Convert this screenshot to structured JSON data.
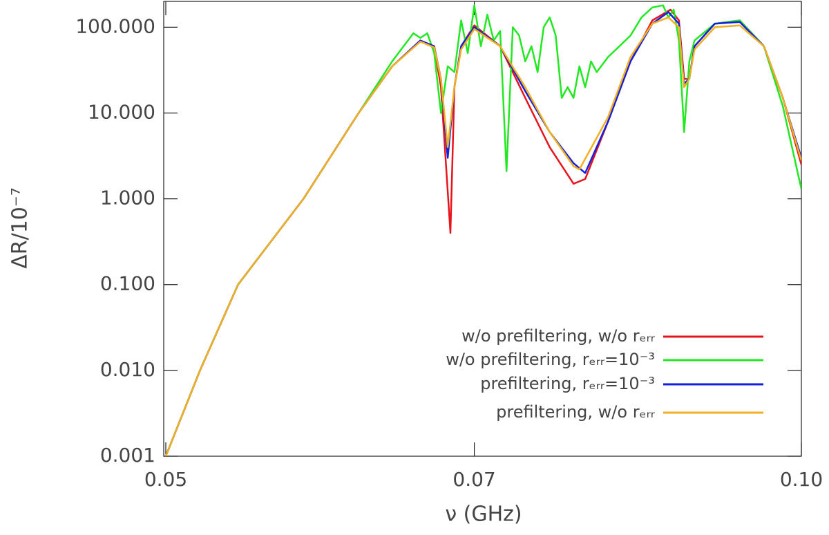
{
  "chart_data": {
    "type": "line",
    "x_label": "ν (GHz)",
    "y_label": "ΔR/10⁻⁷",
    "xlim": [
      0.05,
      0.1
    ],
    "ylim": [
      0.001,
      200
    ],
    "xticks": [
      0.05,
      0.07,
      {
        "value": 0.1,
        "label": "0.10"
      }
    ],
    "yticks": [
      {
        "value": 0.001,
        "label": "0.001"
      },
      {
        "value": 0.01,
        "label": "0.010"
      },
      {
        "value": 0.1,
        "label": "0.100"
      },
      {
        "value": 1,
        "label": "1.000"
      },
      {
        "value": 10,
        "label": "10.000"
      },
      {
        "value": 100,
        "label": "100.000"
      }
    ],
    "log_x": true,
    "log_y": true,
    "legend": "lower right",
    "series": [
      {
        "name": "w/o prefiltering, w/o rₑᵣᵣ",
        "color": "#e8141c",
        "x": [
          0.05,
          0.0519,
          0.0541,
          0.0581,
          0.0617,
          0.064,
          0.066,
          0.067,
          0.0675,
          0.0682,
          0.0685,
          0.069,
          0.07,
          0.072,
          0.074,
          0.076,
          0.078,
          0.079,
          0.081,
          0.083,
          0.085,
          0.0867,
          0.0875,
          0.088,
          0.0885,
          0.089,
          0.091,
          0.0935,
          0.096,
          0.098,
          0.1
        ],
        "values": [
          0.001,
          0.01,
          0.1,
          1,
          10,
          35,
          70,
          60,
          20,
          0.4,
          20,
          60,
          105,
          60,
          15,
          4,
          1.5,
          1.7,
          8,
          40,
          120,
          160,
          120,
          25,
          25,
          60,
          110,
          120,
          60,
          15,
          2.5
        ]
      },
      {
        "name": "w/o prefiltering, rₑᵣᵣ=10⁻³",
        "color": "#22e822",
        "x": [
          0.05,
          0.0519,
          0.0541,
          0.0581,
          0.0617,
          0.064,
          0.0655,
          0.066,
          0.0665,
          0.067,
          0.0675,
          0.068,
          0.0685,
          0.069,
          0.0695,
          0.07,
          0.0705,
          0.071,
          0.0715,
          0.072,
          0.0725,
          0.073,
          0.0735,
          0.074,
          0.0745,
          0.075,
          0.0755,
          0.076,
          0.0765,
          0.077,
          0.0775,
          0.078,
          0.0785,
          0.079,
          0.0795,
          0.08,
          0.081,
          0.082,
          0.083,
          0.084,
          0.085,
          0.086,
          0.0865,
          0.087,
          0.0875,
          0.088,
          0.0885,
          0.089,
          0.091,
          0.0935,
          0.096,
          0.098,
          0.1
        ],
        "values": [
          0.001,
          0.01,
          0.1,
          1,
          10,
          40,
          85,
          75,
          85,
          50,
          10,
          35,
          30,
          120,
          50,
          180,
          60,
          140,
          70,
          90,
          2.1,
          100,
          80,
          40,
          60,
          30,
          100,
          130,
          80,
          15,
          20,
          15,
          35,
          20,
          40,
          30,
          45,
          60,
          80,
          130,
          170,
          180,
          130,
          160,
          70,
          6,
          40,
          70,
          110,
          120,
          60,
          12,
          1.3
        ]
      },
      {
        "name": "prefiltering, rₑᵣᵣ=10⁻³",
        "color": "#1420e0",
        "x": [
          0.05,
          0.0519,
          0.0541,
          0.0581,
          0.0617,
          0.064,
          0.066,
          0.067,
          0.0675,
          0.068,
          0.0685,
          0.069,
          0.07,
          0.072,
          0.074,
          0.076,
          0.078,
          0.079,
          0.081,
          0.083,
          0.085,
          0.0865,
          0.0875,
          0.088,
          0.0885,
          0.089,
          0.091,
          0.0935,
          0.096,
          0.098,
          0.1
        ],
        "values": [
          0.001,
          0.01,
          0.1,
          1,
          10,
          35,
          70,
          60,
          25,
          3,
          20,
          60,
          100,
          60,
          18,
          6,
          2.6,
          2.0,
          8,
          40,
          110,
          150,
          110,
          22,
          25,
          60,
          110,
          115,
          60,
          15,
          3
        ]
      },
      {
        "name": "prefiltering, w/o rₑᵣᵣ",
        "color": "#f0b020",
        "x": [
          0.05,
          0.0519,
          0.0541,
          0.0581,
          0.0617,
          0.064,
          0.066,
          0.067,
          0.0675,
          0.068,
          0.0685,
          0.069,
          0.07,
          0.072,
          0.074,
          0.076,
          0.078,
          0.0785,
          0.081,
          0.083,
          0.085,
          0.0865,
          0.0875,
          0.088,
          0.0885,
          0.089,
          0.091,
          0.0935,
          0.096,
          0.098,
          0.1
        ],
        "values": [
          0.001,
          0.01,
          0.1,
          1,
          10,
          35,
          68,
          58,
          25,
          4,
          20,
          55,
          95,
          60,
          20,
          6,
          2.4,
          2.2,
          9,
          45,
          110,
          130,
          100,
          20,
          25,
          55,
          100,
          105,
          60,
          15,
          2.8
        ]
      }
    ]
  }
}
